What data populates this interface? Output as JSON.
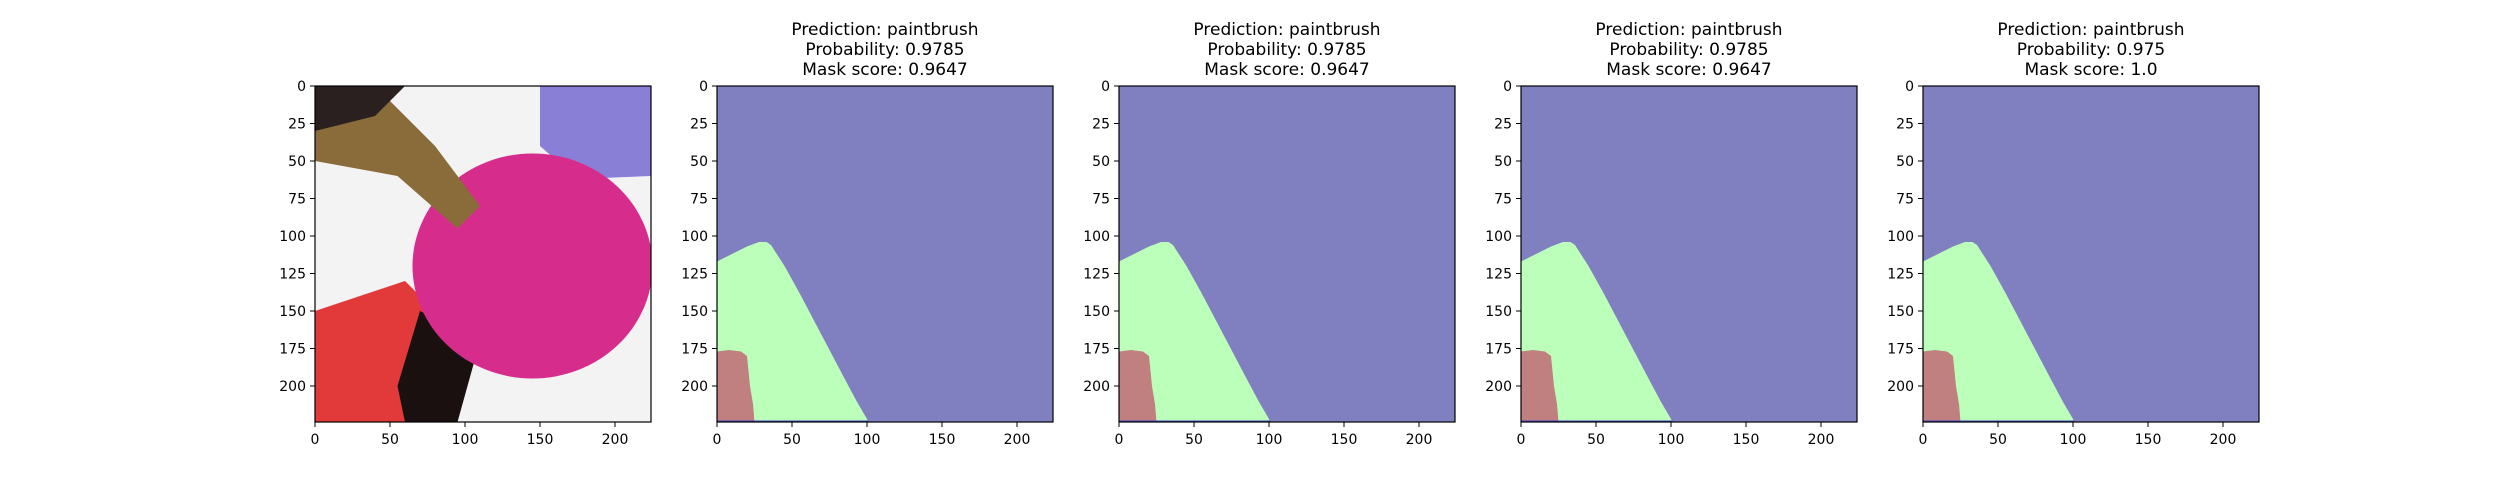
{
  "figure": {
    "background": "#ffffff",
    "panels": [
      {
        "kind": "photo",
        "title": [],
        "image_description": "close-up of a paintbrush dipping into magenta paint in a watercolor palette",
        "colors": {
          "paint_magenta": "#d62d8c",
          "paint_red": "#e23a3a",
          "paint_violet": "#8a7fd6",
          "palette_white": "#f3f3f3",
          "brush_brown": "#8a6b3a",
          "shadow": "#1a1010"
        }
      },
      {
        "kind": "mask",
        "title": [
          "Prediction: paintbrush",
          "Probability: 0.9785",
          "Mask score: 0.9647"
        ]
      },
      {
        "kind": "mask",
        "title": [
          "Prediction: paintbrush",
          "Probability: 0.9785",
          "Mask score: 0.9647"
        ]
      },
      {
        "kind": "mask",
        "title": [
          "Prediction: paintbrush",
          "Probability: 0.9785",
          "Mask score: 0.9647"
        ]
      },
      {
        "kind": "mask",
        "title": [
          "Prediction: paintbrush",
          "Probability: 0.975",
          "Mask score: 1.0"
        ]
      }
    ]
  },
  "chart_data": [
    {
      "type": "image",
      "title": "",
      "image_size": [
        224,
        224
      ],
      "xlim": [
        0,
        224
      ],
      "ylim": [
        224,
        0
      ],
      "xticks": [
        0,
        50,
        100,
        150,
        200
      ],
      "yticks": [
        0,
        25,
        50,
        75,
        100,
        125,
        150,
        175,
        200
      ]
    },
    {
      "type": "heatmap",
      "title": "Prediction: paintbrush\nProbability: 0.9785\nMask score: 0.9647",
      "prediction": "paintbrush",
      "probability": 0.9785,
      "mask_score": 0.9647,
      "image_size": [
        224,
        224
      ],
      "xlim": [
        0,
        224
      ],
      "ylim": [
        224,
        0
      ],
      "xticks": [
        0,
        50,
        100,
        150,
        200
      ],
      "yticks": [
        0,
        25,
        50,
        75,
        100,
        125,
        150,
        175,
        200
      ]
    },
    {
      "type": "heatmap",
      "title": "Prediction: paintbrush\nProbability: 0.9785\nMask score: 0.9647",
      "prediction": "paintbrush",
      "probability": 0.9785,
      "mask_score": 0.9647,
      "image_size": [
        224,
        224
      ],
      "xlim": [
        0,
        224
      ],
      "ylim": [
        224,
        0
      ],
      "xticks": [
        0,
        50,
        100,
        150,
        200
      ],
      "yticks": [
        0,
        25,
        50,
        75,
        100,
        125,
        150,
        175,
        200
      ]
    },
    {
      "type": "heatmap",
      "title": "Prediction: paintbrush\nProbability: 0.9785\nMask score: 0.9647",
      "prediction": "paintbrush",
      "probability": 0.9785,
      "mask_score": 0.9647,
      "image_size": [
        224,
        224
      ],
      "xlim": [
        0,
        224
      ],
      "ylim": [
        224,
        0
      ],
      "xticks": [
        0,
        50,
        100,
        150,
        200
      ],
      "yticks": [
        0,
        25,
        50,
        75,
        100,
        125,
        150,
        175,
        200
      ]
    },
    {
      "type": "heatmap",
      "title": "Prediction: paintbrush\nProbability: 0.975\nMask score: 1.0",
      "prediction": "paintbrush",
      "probability": 0.975,
      "mask_score": 1.0,
      "image_size": [
        224,
        224
      ],
      "xlim": [
        0,
        224
      ],
      "ylim": [
        224,
        0
      ],
      "xticks": [
        0,
        50,
        100,
        150,
        200
      ],
      "yticks": [
        0,
        25,
        50,
        75,
        100,
        125,
        150,
        175,
        200
      ]
    }
  ],
  "mask_regions": {
    "background": {
      "color": "#8080c0",
      "polygon": []
    },
    "brush": {
      "color": "#bbffbb",
      "polygon": [
        [
          0,
          117
        ],
        [
          10,
          112
        ],
        [
          20,
          107
        ],
        [
          28,
          104
        ],
        [
          33,
          104
        ],
        [
          36,
          106
        ],
        [
          45,
          120
        ],
        [
          55,
          138
        ],
        [
          65,
          157
        ],
        [
          75,
          176
        ],
        [
          85,
          195
        ],
        [
          93,
          210
        ],
        [
          100,
          222
        ],
        [
          101,
          224
        ],
        [
          0,
          224
        ]
      ]
    },
    "hand": {
      "color": "#c08080",
      "polygon": [
        [
          0,
          177
        ],
        [
          8,
          176
        ],
        [
          16,
          177
        ],
        [
          20,
          180
        ],
        [
          21,
          190
        ],
        [
          22,
          200
        ],
        [
          24,
          212
        ],
        [
          25,
          224
        ],
        [
          0,
          224
        ]
      ]
    },
    "bottom_line": {
      "color": "#4040c0",
      "y": 223
    }
  }
}
